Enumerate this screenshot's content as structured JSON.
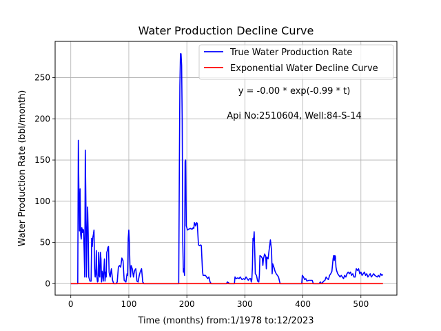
{
  "chart_data": {
    "type": "line",
    "title": "Water Production Decline Curve",
    "xlabel": "Time (months) from:1/1978 to:12/2023",
    "ylabel": "Water Production Rate (bbl/month)",
    "xlim": [
      -27,
      562
    ],
    "ylim": [
      -14,
      294
    ],
    "xticks": [
      0,
      100,
      200,
      300,
      400,
      500
    ],
    "yticks": [
      0,
      50,
      100,
      150,
      200,
      250
    ],
    "grid": true,
    "legend_position": "top-right",
    "annotations": [
      "y = -0.00 * exp(-0.99 * t)",
      "Api No:2510604, Well:84-S-14"
    ],
    "series": [
      {
        "name": "True Water Production Rate",
        "color": "#0000ff",
        "points": [
          [
            0,
            0
          ],
          [
            12,
            0
          ],
          [
            13,
            174
          ],
          [
            14,
            110
          ],
          [
            15,
            64
          ],
          [
            16,
            115
          ],
          [
            17,
            60
          ],
          [
            18,
            54
          ],
          [
            19,
            68
          ],
          [
            20,
            62
          ],
          [
            21,
            66
          ],
          [
            22,
            65
          ],
          [
            23,
            40
          ],
          [
            24,
            8
          ],
          [
            25,
            162
          ],
          [
            26,
            100
          ],
          [
            27,
            8
          ],
          [
            28,
            60
          ],
          [
            29,
            93
          ],
          [
            30,
            60
          ],
          [
            31,
            8
          ],
          [
            33,
            3
          ],
          [
            35,
            3
          ],
          [
            36,
            55
          ],
          [
            37,
            45
          ],
          [
            38,
            56
          ],
          [
            39,
            60
          ],
          [
            40,
            65
          ],
          [
            41,
            18
          ],
          [
            42,
            8
          ],
          [
            43,
            12
          ],
          [
            44,
            40
          ],
          [
            45,
            8
          ],
          [
            46,
            2
          ],
          [
            47,
            3
          ],
          [
            48,
            38
          ],
          [
            49,
            10
          ],
          [
            50,
            8
          ],
          [
            51,
            38
          ],
          [
            52,
            30
          ],
          [
            53,
            2
          ],
          [
            54,
            15
          ],
          [
            55,
            12
          ],
          [
            56,
            3
          ],
          [
            58,
            30
          ],
          [
            59,
            3
          ],
          [
            60,
            14
          ],
          [
            61,
            8
          ],
          [
            62,
            38
          ],
          [
            63,
            40
          ],
          [
            64,
            44
          ],
          [
            65,
            45
          ],
          [
            66,
            14
          ],
          [
            67,
            10
          ],
          [
            68,
            8
          ],
          [
            69,
            14
          ],
          [
            70,
            18
          ],
          [
            72,
            4
          ],
          [
            74,
            0
          ],
          [
            78,
            0
          ],
          [
            80,
            2
          ],
          [
            82,
            20
          ],
          [
            84,
            22
          ],
          [
            86,
            20
          ],
          [
            88,
            31
          ],
          [
            90,
            28
          ],
          [
            92,
            4
          ],
          [
            95,
            2
          ],
          [
            97,
            12
          ],
          [
            98,
            10
          ],
          [
            99,
            55
          ],
          [
            100,
            65
          ],
          [
            101,
            50
          ],
          [
            102,
            20
          ],
          [
            103,
            8
          ],
          [
            104,
            22
          ],
          [
            106,
            18
          ],
          [
            108,
            8
          ],
          [
            110,
            16
          ],
          [
            112,
            18
          ],
          [
            114,
            3
          ],
          [
            116,
            2
          ],
          [
            118,
            10
          ],
          [
            120,
            15
          ],
          [
            122,
            18
          ],
          [
            124,
            2
          ],
          [
            126,
            0
          ],
          [
            130,
            0
          ],
          [
            140,
            0
          ],
          [
            150,
            0
          ],
          [
            160,
            0
          ],
          [
            170,
            0
          ],
          [
            180,
            0
          ],
          [
            186,
            0
          ],
          [
            187,
            130
          ],
          [
            188,
            240
          ],
          [
            189,
            279
          ],
          [
            190,
            279
          ],
          [
            191,
            265
          ],
          [
            192,
            200
          ],
          [
            193,
            50
          ],
          [
            194,
            14
          ],
          [
            195,
            18
          ],
          [
            196,
            10
          ],
          [
            197,
            148
          ],
          [
            198,
            150
          ],
          [
            199,
            70
          ],
          [
            200,
            68
          ],
          [
            201,
            65
          ],
          [
            203,
            66
          ],
          [
            206,
            67
          ],
          [
            209,
            66
          ],
          [
            211,
            68
          ],
          [
            212,
            67
          ],
          [
            213,
            74
          ],
          [
            214,
            73
          ],
          [
            215,
            70
          ],
          [
            216,
            72
          ],
          [
            217,
            74
          ],
          [
            218,
            73
          ],
          [
            219,
            60
          ],
          [
            220,
            47
          ],
          [
            222,
            46
          ],
          [
            224,
            47
          ],
          [
            225,
            46
          ],
          [
            226,
            30
          ],
          [
            227,
            15
          ],
          [
            228,
            10
          ],
          [
            230,
            10
          ],
          [
            232,
            10
          ],
          [
            234,
            8
          ],
          [
            236,
            6
          ],
          [
            238,
            8
          ],
          [
            240,
            2
          ],
          [
            242,
            0
          ],
          [
            250,
            0
          ],
          [
            260,
            0
          ],
          [
            268,
            0
          ],
          [
            269,
            1
          ],
          [
            270,
            2
          ],
          [
            272,
            1
          ],
          [
            273,
            0
          ],
          [
            282,
            0
          ],
          [
            283,
            8
          ],
          [
            285,
            6
          ],
          [
            288,
            7
          ],
          [
            290,
            6
          ],
          [
            292,
            8
          ],
          [
            295,
            5
          ],
          [
            298,
            6
          ],
          [
            300,
            5
          ],
          [
            302,
            8
          ],
          [
            304,
            6
          ],
          [
            306,
            4
          ],
          [
            308,
            6
          ],
          [
            310,
            6
          ],
          [
            311,
            2
          ],
          [
            312,
            5
          ],
          [
            313,
            20
          ],
          [
            314,
            55
          ],
          [
            315,
            52
          ],
          [
            316,
            63
          ],
          [
            317,
            40
          ],
          [
            318,
            12
          ],
          [
            320,
            10
          ],
          [
            322,
            3
          ],
          [
            324,
            2
          ],
          [
            325,
            10
          ],
          [
            326,
            34
          ],
          [
            328,
            33
          ],
          [
            330,
            31
          ],
          [
            331,
            22
          ],
          [
            332,
            30
          ],
          [
            334,
            36
          ],
          [
            336,
            33
          ],
          [
            337,
            18
          ],
          [
            338,
            32
          ],
          [
            340,
            30
          ],
          [
            342,
            42
          ],
          [
            344,
            53
          ],
          [
            346,
            40
          ],
          [
            347,
            12
          ],
          [
            348,
            24
          ],
          [
            350,
            20
          ],
          [
            352,
            15
          ],
          [
            354,
            12
          ],
          [
            356,
            10
          ],
          [
            358,
            8
          ],
          [
            360,
            2
          ],
          [
            361,
            0
          ],
          [
            370,
            0
          ],
          [
            380,
            0
          ],
          [
            390,
            0
          ],
          [
            398,
            0
          ],
          [
            399,
            10
          ],
          [
            401,
            8
          ],
          [
            403,
            5
          ],
          [
            405,
            6
          ],
          [
            407,
            3
          ],
          [
            410,
            4
          ],
          [
            413,
            4
          ],
          [
            416,
            4
          ],
          [
            418,
            0
          ],
          [
            420,
            0
          ],
          [
            425,
            0
          ],
          [
            428,
            0
          ],
          [
            430,
            2
          ],
          [
            432,
            0
          ],
          [
            436,
            3
          ],
          [
            438,
            4
          ],
          [
            440,
            8
          ],
          [
            442,
            6
          ],
          [
            444,
            5
          ],
          [
            446,
            10
          ],
          [
            448,
            12
          ],
          [
            450,
            15
          ],
          [
            452,
            30
          ],
          [
            453,
            34
          ],
          [
            454,
            28
          ],
          [
            455,
            34
          ],
          [
            456,
            33
          ],
          [
            457,
            20
          ],
          [
            458,
            16
          ],
          [
            460,
            12
          ],
          [
            462,
            10
          ],
          [
            464,
            8
          ],
          [
            466,
            10
          ],
          [
            468,
            8
          ],
          [
            470,
            6
          ],
          [
            472,
            10
          ],
          [
            474,
            8
          ],
          [
            476,
            12
          ],
          [
            478,
            14
          ],
          [
            480,
            12
          ],
          [
            482,
            14
          ],
          [
            484,
            10
          ],
          [
            486,
            12
          ],
          [
            488,
            8
          ],
          [
            490,
            8
          ],
          [
            492,
            18
          ],
          [
            494,
            16
          ],
          [
            496,
            18
          ],
          [
            498,
            12
          ],
          [
            500,
            14
          ],
          [
            502,
            10
          ],
          [
            504,
            12
          ],
          [
            506,
            14
          ],
          [
            508,
            10
          ],
          [
            510,
            12
          ],
          [
            512,
            8
          ],
          [
            514,
            10
          ],
          [
            516,
            12
          ],
          [
            518,
            8
          ],
          [
            520,
            10
          ],
          [
            522,
            12
          ],
          [
            524,
            10
          ],
          [
            526,
            9
          ],
          [
            528,
            8
          ],
          [
            530,
            10
          ],
          [
            532,
            8
          ],
          [
            534,
            12
          ],
          [
            536,
            10
          ],
          [
            538,
            11
          ]
        ]
      },
      {
        "name": "Exponential Water Decline Curve",
        "color": "#ff0000",
        "points": [
          [
            0,
            0
          ],
          [
            538,
            0
          ]
        ]
      }
    ]
  }
}
